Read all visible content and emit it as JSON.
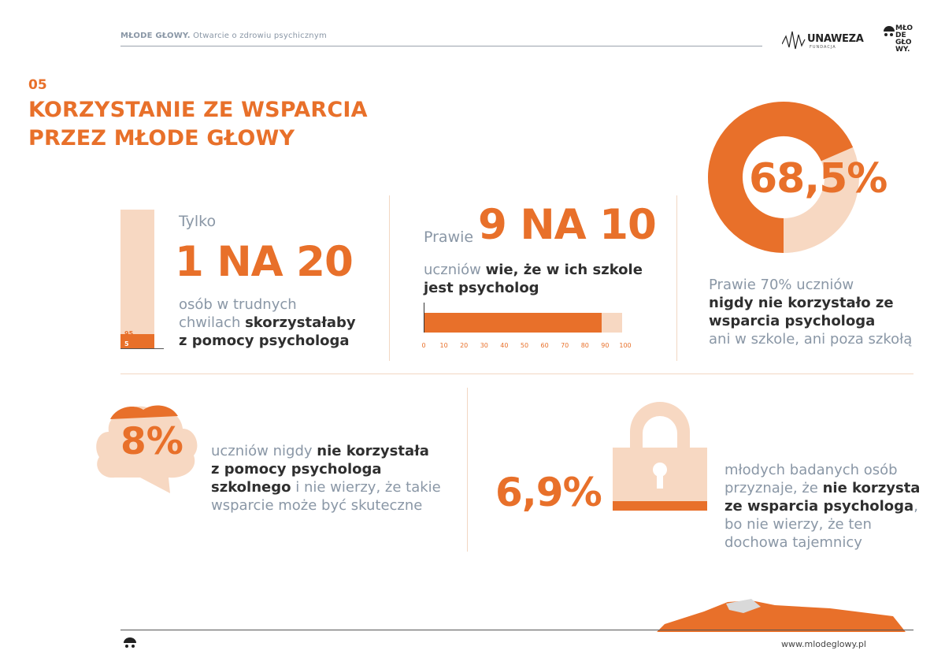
{
  "header": {
    "title_bold": "MŁODE GŁOWY.",
    "title_rest": " Otwarcie o zdrowiu psychicznym",
    "logo_unaweza": "UNAWEZA",
    "logo_unaweza_sub": "FUNDACJA",
    "logo_mg_lines": [
      "MŁO",
      "DE",
      "GŁO",
      "WY."
    ]
  },
  "section": {
    "number": "05",
    "title_line1": "KORZYSTANIE ZE WSPARCIA",
    "title_line2": "PRZEZ MŁODE GŁOWY"
  },
  "block1": {
    "pre": "Tylko",
    "big": "1 NA 20",
    "desc_grey1": "osób w trudnych",
    "desc_grey2": "chwilach ",
    "desc_bold1": "skorzystałaby",
    "desc_bold2": "z pomocy psychologa",
    "bar_label_top": "95",
    "bar_label_bottom": "5",
    "bar_fraction": 0.05
  },
  "block2": {
    "pre": "Prawie",
    "big": "9 NA 10",
    "desc_grey": "uczniów ",
    "desc_bold1": "wie, że w ich szkole",
    "desc_bold2": "jest psycholog",
    "bar_value": 88,
    "bar_max": 98,
    "ticks": [
      "0",
      "10",
      "20",
      "30",
      "40",
      "50",
      "60",
      "70",
      "80",
      "90",
      "100"
    ]
  },
  "block3": {
    "big": "68,5%",
    "donut_fraction": 0.685,
    "desc_grey1": "Prawie 70% uczniów",
    "desc_bold1": "nigdy nie korzystało ze",
    "desc_bold2": "wsparcia psychologa",
    "desc_grey2": "ani w szkole, ani poza szkołą"
  },
  "block4": {
    "big": "8%",
    "desc_grey1": "uczniów nigdy ",
    "desc_bold1": "nie korzystała",
    "desc_bold2": "z pomocy psychologa",
    "desc_bold3": "szkolnego",
    "desc_grey2": " i nie wierzy, że takie",
    "desc_grey3": "wsparcie może być skuteczne"
  },
  "block5": {
    "big": "6,9%",
    "desc_grey1": "młodych badanych osób",
    "desc_grey2": "przyznaje, że ",
    "desc_bold1": "nie korzysta",
    "desc_bold2": "ze wsparcia psychologa",
    "desc_grey3": ",",
    "desc_grey4": "bo nie wierzy, że ten",
    "desc_grey5": "dochowa tajemnicy"
  },
  "footer": {
    "url": "www.mlodeglowy.pl"
  },
  "colors": {
    "accent": "#e8702a",
    "accent_light": "#f7d8c2",
    "grey_text": "#8a97a6",
    "dark_text": "#2f2f2f"
  }
}
